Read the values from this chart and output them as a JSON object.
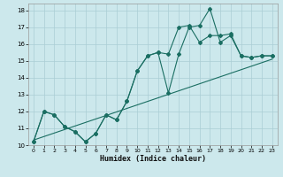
{
  "xlabel": "Humidex (Indice chaleur)",
  "background_color": "#cce8ec",
  "grid_color": "#aacdd4",
  "line_color": "#1a6e62",
  "xlim": [
    -0.5,
    23.5
  ],
  "ylim": [
    10,
    18.4
  ],
  "xticks": [
    0,
    1,
    2,
    3,
    4,
    5,
    6,
    7,
    8,
    9,
    10,
    11,
    12,
    13,
    14,
    15,
    16,
    17,
    18,
    19,
    20,
    21,
    22,
    23
  ],
  "yticks": [
    10,
    11,
    12,
    13,
    14,
    15,
    16,
    17,
    18
  ],
  "series1": [
    [
      0,
      10.2
    ],
    [
      1,
      12.0
    ],
    [
      2,
      11.8
    ],
    [
      3,
      11.1
    ],
    [
      4,
      10.8
    ],
    [
      5,
      10.2
    ],
    [
      6,
      10.7
    ],
    [
      7,
      11.8
    ],
    [
      8,
      11.5
    ],
    [
      9,
      12.6
    ],
    [
      10,
      14.4
    ],
    [
      11,
      15.3
    ],
    [
      12,
      15.5
    ],
    [
      13,
      13.1
    ],
    [
      14,
      15.4
    ],
    [
      15,
      17.0
    ],
    [
      16,
      17.1
    ],
    [
      17,
      18.1
    ],
    [
      18,
      16.1
    ],
    [
      19,
      16.5
    ],
    [
      20,
      15.3
    ],
    [
      21,
      15.2
    ],
    [
      22,
      15.3
    ],
    [
      23,
      15.3
    ]
  ],
  "series2": [
    [
      0,
      10.2
    ],
    [
      1,
      12.0
    ],
    [
      2,
      11.8
    ],
    [
      3,
      11.1
    ],
    [
      4,
      10.8
    ],
    [
      5,
      10.2
    ],
    [
      6,
      10.7
    ],
    [
      7,
      11.8
    ],
    [
      8,
      11.5
    ],
    [
      9,
      12.6
    ],
    [
      10,
      14.4
    ],
    [
      11,
      15.3
    ],
    [
      12,
      15.5
    ],
    [
      13,
      15.4
    ],
    [
      14,
      17.0
    ],
    [
      15,
      17.1
    ],
    [
      16,
      16.1
    ],
    [
      17,
      16.5
    ],
    [
      18,
      16.5
    ],
    [
      19,
      16.6
    ],
    [
      20,
      15.3
    ],
    [
      21,
      15.2
    ],
    [
      22,
      15.3
    ],
    [
      23,
      15.3
    ]
  ],
  "trend_line": [
    [
      0,
      10.3
    ],
    [
      23,
      15.1
    ]
  ]
}
